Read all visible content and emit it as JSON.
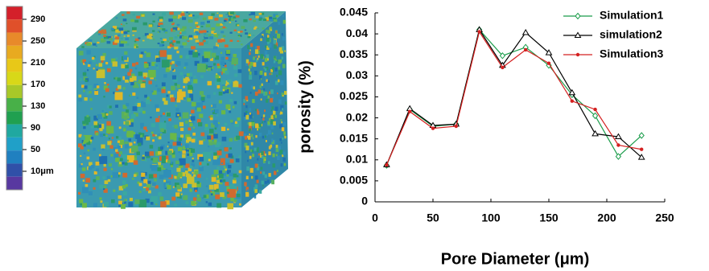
{
  "colorbar": {
    "labels": [
      "290",
      "250",
      "210",
      "170",
      "130",
      "90",
      "50",
      "10μm"
    ],
    "colors": [
      "#d4202a",
      "#e0502a",
      "#e88a2a",
      "#e8aa20",
      "#e8c818",
      "#d8d818",
      "#a8c828",
      "#48b048",
      "#20a050",
      "#20a8a0",
      "#20a0c8",
      "#2080c0",
      "#3050a8",
      "#5838a0"
    ]
  },
  "chart_data": {
    "type": "line",
    "x_label": "Pore Diameter (μm)",
    "y_label": "porosity (%)",
    "x": [
      10,
      30,
      50,
      70,
      90,
      110,
      130,
      150,
      170,
      190,
      210,
      230
    ],
    "series": [
      {
        "name": "Simulation1",
        "color": "#1a9c4a",
        "marker": "diamond",
        "values": [
          0.0087,
          0.022,
          0.018,
          0.0185,
          0.041,
          0.0348,
          0.0368,
          0.0325,
          0.0255,
          0.0205,
          0.0108,
          0.0158
        ]
      },
      {
        "name": "simulation2",
        "color": "#000000",
        "marker": "triangle",
        "values": [
          0.0088,
          0.0222,
          0.0182,
          0.0185,
          0.041,
          0.0325,
          0.0403,
          0.0355,
          0.026,
          0.0162,
          0.0155,
          0.0106
        ]
      },
      {
        "name": "Simulation3",
        "color": "#d42020",
        "marker": "circle",
        "values": [
          0.0088,
          0.0215,
          0.0175,
          0.018,
          0.0405,
          0.032,
          0.0362,
          0.033,
          0.024,
          0.022,
          0.0135,
          0.0125
        ]
      }
    ],
    "xlim": [
      0,
      250
    ],
    "xticks": [
      0,
      50,
      100,
      150,
      200,
      250
    ],
    "ylim": [
      0,
      0.045
    ],
    "yticks": [
      0,
      0.005,
      0.01,
      0.015,
      0.02,
      0.025,
      0.03,
      0.035,
      0.04,
      0.045
    ],
    "legend": "upper right"
  }
}
